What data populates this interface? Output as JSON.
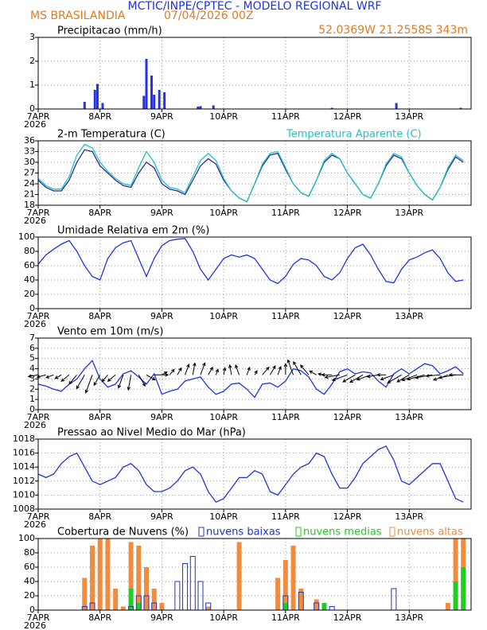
{
  "header": {
    "title": "MCTIC/INPE/CPTEC - MODELO REGIONAL WRF",
    "station": "MS BRASILANDIA",
    "run": "07/04/2026 00Z",
    "location": "52.0369W 21.2558S 343m"
  },
  "chart_data": [
    {
      "type": "bar",
      "title": "Precipitacao (mm/h)",
      "xlim": [
        0,
        168
      ],
      "ylim": [
        0,
        3
      ],
      "yticks": [
        0,
        1,
        2,
        3
      ],
      "grid": true,
      "color": "#2233ee",
      "xticks": [
        {
          "value": 0,
          "label": "7APR"
        },
        {
          "value": 24,
          "label": "8APR"
        },
        {
          "value": 48,
          "label": "9APR"
        },
        {
          "value": 72,
          "label": "10APR"
        },
        {
          "value": 96,
          "label": "11APR"
        },
        {
          "value": 120,
          "label": "12APR"
        },
        {
          "value": 144,
          "label": "13APR"
        }
      ],
      "year": "2026",
      "x": [
        18,
        22,
        23,
        25,
        41,
        42,
        44,
        45,
        47,
        49,
        62,
        63,
        68,
        114,
        139,
        164
      ],
      "values": [
        0.3,
        0.8,
        1.05,
        0.25,
        0.55,
        2.1,
        1.4,
        0.6,
        0.8,
        0.7,
        0.1,
        0.12,
        0.15,
        0.05,
        0.25,
        0.05
      ]
    },
    {
      "type": "line",
      "title": "2-m Temperatura (C)",
      "xlim": [
        0,
        168
      ],
      "ylim": [
        18,
        36
      ],
      "yticks": [
        18,
        21,
        24,
        27,
        30,
        33,
        36
      ],
      "grid": true,
      "xticks": [
        {
          "value": 0,
          "label": "7APR"
        },
        {
          "value": 24,
          "label": "8APR"
        },
        {
          "value": 48,
          "label": "9APR"
        },
        {
          "value": 72,
          "label": "10APR"
        },
        {
          "value": 96,
          "label": "11APR"
        },
        {
          "value": 120,
          "label": "12APR"
        },
        {
          "value": 144,
          "label": "13APR"
        }
      ],
      "year": "2026",
      "x": [
        0,
        3,
        6,
        9,
        12,
        15,
        18,
        21,
        24,
        27,
        30,
        33,
        36,
        39,
        42,
        45,
        48,
        51,
        54,
        57,
        60,
        63,
        66,
        69,
        72,
        75,
        78,
        81,
        84,
        87,
        90,
        93,
        96,
        99,
        102,
        105,
        108,
        111,
        114,
        117,
        120,
        123,
        126,
        129,
        132,
        135,
        138,
        141,
        144,
        147,
        150,
        153,
        156,
        159,
        162,
        165
      ],
      "series": [
        {
          "color": "#2a2a9a",
          "values": [
            25,
            23,
            22,
            22,
            25,
            30,
            33.5,
            33,
            29,
            27,
            25,
            23.5,
            23,
            27,
            30,
            28.5,
            24,
            22.5,
            22,
            21,
            25,
            29,
            31,
            29.5,
            25,
            22,
            20,
            19,
            24,
            29,
            32,
            32.5,
            28,
            24,
            21.5,
            20.5,
            25,
            30,
            32,
            31,
            27,
            24,
            21,
            20,
            24,
            29,
            32,
            31,
            27,
            23.5,
            21,
            19.5,
            23,
            28,
            31.5,
            30
          ]
        },
        {
          "name": "Temperatura Aparente (C)",
          "color": "#22c4c4",
          "values": [
            25.5,
            23.5,
            22.5,
            22.5,
            26,
            32,
            35,
            34,
            30,
            27.5,
            25.5,
            24,
            23.5,
            28.5,
            33,
            30,
            25,
            23,
            22.5,
            21.5,
            26,
            30.5,
            32.5,
            30.5,
            25.5,
            22,
            20,
            19,
            24,
            29.5,
            32.5,
            33,
            28.5,
            24,
            21.5,
            20.5,
            25,
            30.5,
            32.5,
            31,
            27,
            24,
            21,
            20,
            24,
            29.5,
            32.5,
            31.5,
            27,
            23.5,
            21,
            19.5,
            23,
            28.5,
            32,
            30.5
          ]
        }
      ]
    },
    {
      "type": "line",
      "title": "Umidade Relativa em 2m (%)",
      "xlim": [
        0,
        168
      ],
      "ylim": [
        0,
        100
      ],
      "yticks": [
        0,
        20,
        40,
        60,
        80,
        100
      ],
      "grid": true,
      "xticks": [
        {
          "value": 0,
          "label": "7APR"
        },
        {
          "value": 24,
          "label": "8APR"
        },
        {
          "value": 48,
          "label": "9APR"
        },
        {
          "value": 72,
          "label": "10APR"
        },
        {
          "value": 96,
          "label": "11APR"
        },
        {
          "value": 120,
          "label": "12APR"
        },
        {
          "value": 144,
          "label": "13APR"
        }
      ],
      "year": "2026",
      "x": [
        0,
        3,
        6,
        9,
        12,
        15,
        18,
        21,
        24,
        27,
        30,
        33,
        36,
        39,
        42,
        45,
        48,
        51,
        54,
        57,
        60,
        63,
        66,
        69,
        72,
        75,
        78,
        81,
        84,
        87,
        90,
        93,
        96,
        99,
        102,
        105,
        108,
        111,
        114,
        117,
        120,
        123,
        126,
        129,
        132,
        135,
        138,
        141,
        144,
        147,
        150,
        153,
        156,
        159,
        162,
        165
      ],
      "series": [
        {
          "color": "#2233dd",
          "values": [
            62,
            75,
            83,
            90,
            95,
            80,
            60,
            45,
            40,
            70,
            85,
            92,
            95,
            70,
            45,
            70,
            88,
            95,
            97,
            98,
            80,
            55,
            40,
            55,
            70,
            75,
            72,
            75,
            70,
            55,
            40,
            35,
            45,
            62,
            70,
            68,
            60,
            45,
            40,
            50,
            70,
            85,
            90,
            75,
            55,
            38,
            36,
            55,
            68,
            72,
            78,
            82,
            70,
            50,
            38,
            40
          ]
        }
      ]
    },
    {
      "type": "wind",
      "title": "Vento em 10m (m/s)",
      "xlim": [
        0,
        168
      ],
      "ylim": [
        0,
        7
      ],
      "yticks": [
        0,
        1,
        2,
        3,
        4,
        5,
        6,
        7
      ],
      "grid": true,
      "xticks": [
        {
          "value": 0,
          "label": "7APR"
        },
        {
          "value": 24,
          "label": "8APR"
        },
        {
          "value": 48,
          "label": "9APR"
        },
        {
          "value": 72,
          "label": "10APR"
        },
        {
          "value": 96,
          "label": "11APR"
        },
        {
          "value": 120,
          "label": "12APR"
        },
        {
          "value": 144,
          "label": "13APR"
        }
      ],
      "year": "2026",
      "x": [
        0,
        3,
        6,
        9,
        12,
        15,
        18,
        21,
        24,
        27,
        30,
        33,
        36,
        39,
        42,
        45,
        48,
        51,
        54,
        57,
        60,
        63,
        66,
        69,
        72,
        75,
        78,
        81,
        84,
        87,
        90,
        93,
        96,
        99,
        102,
        105,
        108,
        111,
        114,
        117,
        120,
        123,
        126,
        129,
        132,
        135,
        138,
        141,
        144,
        147,
        150,
        153,
        156,
        159,
        162,
        165
      ],
      "series": [
        {
          "color": "#2233dd",
          "values": [
            2.5,
            2.3,
            2,
            1.8,
            2.5,
            3,
            4,
            4.8,
            3,
            2.2,
            2.5,
            3.5,
            3.8,
            3.2,
            2.5,
            3.5,
            1.5,
            1.8,
            2,
            2.8,
            3,
            3.2,
            2.2,
            1.5,
            1.8,
            2.5,
            2.6,
            2,
            1.2,
            2.5,
            2.6,
            2.2,
            2.8,
            4,
            3.8,
            3.2,
            2,
            1.5,
            2.5,
            3.7,
            4,
            3.5,
            3.7,
            3.6,
            2.8,
            2.2,
            3.5,
            4,
            3.5,
            4,
            4.5,
            4.3,
            3.5,
            3.8,
            4.2,
            3.5
          ]
        }
      ],
      "direction": [
        260,
        255,
        250,
        240,
        230,
        220,
        210,
        200,
        210,
        220,
        230,
        200,
        190,
        150,
        120,
        90,
        60,
        40,
        30,
        20,
        10,
        20,
        30,
        20,
        10,
        350,
        340,
        20,
        30,
        40,
        30,
        20,
        0,
        340,
        330,
        320,
        300,
        280,
        270,
        260,
        250,
        240,
        240,
        250,
        260,
        270,
        250,
        240,
        240,
        250,
        255,
        260,
        265,
        250,
        260,
        270
      ],
      "arrow_color": "#000000"
    },
    {
      "type": "line",
      "title": "Pressao ao Nivel Medio do Mar (hPa)",
      "xlim": [
        0,
        168
      ],
      "ylim": [
        1008,
        1018
      ],
      "yticks": [
        1008,
        1010,
        1012,
        1014,
        1016,
        1018
      ],
      "grid": true,
      "xticks": [
        {
          "value": 0,
          "label": "7APR"
        },
        {
          "value": 24,
          "label": "8APR"
        },
        {
          "value": 48,
          "label": "9APR"
        },
        {
          "value": 72,
          "label": "10APR"
        },
        {
          "value": 96,
          "label": "11APR"
        },
        {
          "value": 120,
          "label": "12APR"
        },
        {
          "value": 144,
          "label": "13APR"
        }
      ],
      "year": "2026",
      "x": [
        0,
        3,
        6,
        9,
        12,
        15,
        18,
        21,
        24,
        27,
        30,
        33,
        36,
        39,
        42,
        45,
        48,
        51,
        54,
        57,
        60,
        63,
        66,
        69,
        72,
        75,
        78,
        81,
        84,
        87,
        90,
        93,
        96,
        99,
        102,
        105,
        108,
        111,
        114,
        117,
        120,
        123,
        126,
        129,
        132,
        135,
        138,
        141,
        144,
        147,
        150,
        153,
        156,
        159,
        162,
        165
      ],
      "series": [
        {
          "color": "#2233dd",
          "values": [
            1013,
            1012.5,
            1013,
            1014.5,
            1015.5,
            1016,
            1014,
            1012,
            1011.5,
            1012,
            1012.5,
            1014,
            1014.5,
            1013.5,
            1011.5,
            1010.5,
            1010.5,
            1011,
            1012,
            1013.5,
            1014,
            1013,
            1010.5,
            1009,
            1009.5,
            1011,
            1012.5,
            1012.5,
            1013.5,
            1013,
            1010.5,
            1010,
            1011.5,
            1013,
            1014,
            1014.5,
            1016,
            1015.5,
            1013,
            1011,
            1011,
            1012.5,
            1014.5,
            1015.5,
            1016.5,
            1017,
            1015,
            1012,
            1011.5,
            1012.5,
            1013.5,
            1014.5,
            1014.5,
            1012,
            1009.5,
            1009
          ]
        }
      ]
    },
    {
      "type": "cloud",
      "title": "Cobertura de Nuvens (%)",
      "xlim": [
        0,
        168
      ],
      "ylim": [
        0,
        100
      ],
      "yticks": [
        0,
        20,
        40,
        60,
        80,
        100
      ],
      "grid": true,
      "xticks": [
        {
          "value": 0,
          "label": "7APR"
        },
        {
          "value": 24,
          "label": "8APR"
        },
        {
          "value": 48,
          "label": "9APR"
        },
        {
          "value": 72,
          "label": "10APR"
        },
        {
          "value": 96,
          "label": "11APR"
        },
        {
          "value": 120,
          "label": "12APR"
        },
        {
          "value": 144,
          "label": "13APR"
        }
      ],
      "year": "2026",
      "x": [
        0,
        3,
        6,
        9,
        12,
        15,
        18,
        21,
        24,
        27,
        30,
        33,
        36,
        39,
        42,
        45,
        48,
        51,
        54,
        57,
        60,
        63,
        66,
        69,
        72,
        75,
        78,
        81,
        84,
        87,
        90,
        93,
        96,
        99,
        102,
        105,
        108,
        111,
        114,
        117,
        120,
        123,
        126,
        129,
        132,
        135,
        138,
        141,
        144,
        147,
        150,
        153,
        156,
        159,
        162,
        165
      ],
      "series": [
        {
          "name": "nuvens baixas",
          "color": "#2233cc",
          "values": [
            0,
            0,
            0,
            0,
            0,
            0,
            5,
            10,
            0,
            0,
            0,
            0,
            5,
            20,
            20,
            10,
            0,
            0,
            40,
            65,
            75,
            40,
            10,
            0,
            0,
            0,
            0,
            0,
            0,
            0,
            0,
            0,
            20,
            0,
            25,
            0,
            10,
            0,
            5,
            0,
            0,
            0,
            0,
            0,
            0,
            0,
            30,
            0,
            0,
            0,
            0,
            0,
            0,
            0,
            0,
            0
          ]
        },
        {
          "name": "nuvens medias",
          "color": "#22cc22",
          "values": [
            0,
            0,
            0,
            0,
            0,
            0,
            0,
            0,
            0,
            0,
            0,
            0,
            30,
            10,
            0,
            0,
            0,
            0,
            0,
            0,
            0,
            0,
            0,
            0,
            0,
            0,
            0,
            0,
            0,
            0,
            0,
            0,
            10,
            0,
            0,
            0,
            0,
            10,
            0,
            0,
            0,
            0,
            0,
            0,
            0,
            0,
            0,
            0,
            0,
            0,
            0,
            0,
            0,
            0,
            40,
            60
          ]
        },
        {
          "name": "nuvens altas",
          "color": "#f08c40",
          "values": [
            0,
            0,
            0,
            0,
            0,
            0,
            45,
            90,
            100,
            100,
            30,
            5,
            95,
            90,
            60,
            30,
            10,
            0,
            0,
            0,
            0,
            0,
            5,
            0,
            0,
            0,
            95,
            0,
            0,
            0,
            0,
            45,
            70,
            90,
            30,
            0,
            15,
            0,
            0,
            0,
            0,
            0,
            0,
            0,
            0,
            0,
            0,
            0,
            0,
            0,
            0,
            0,
            0,
            10,
            100,
            100
          ]
        }
      ]
    }
  ]
}
